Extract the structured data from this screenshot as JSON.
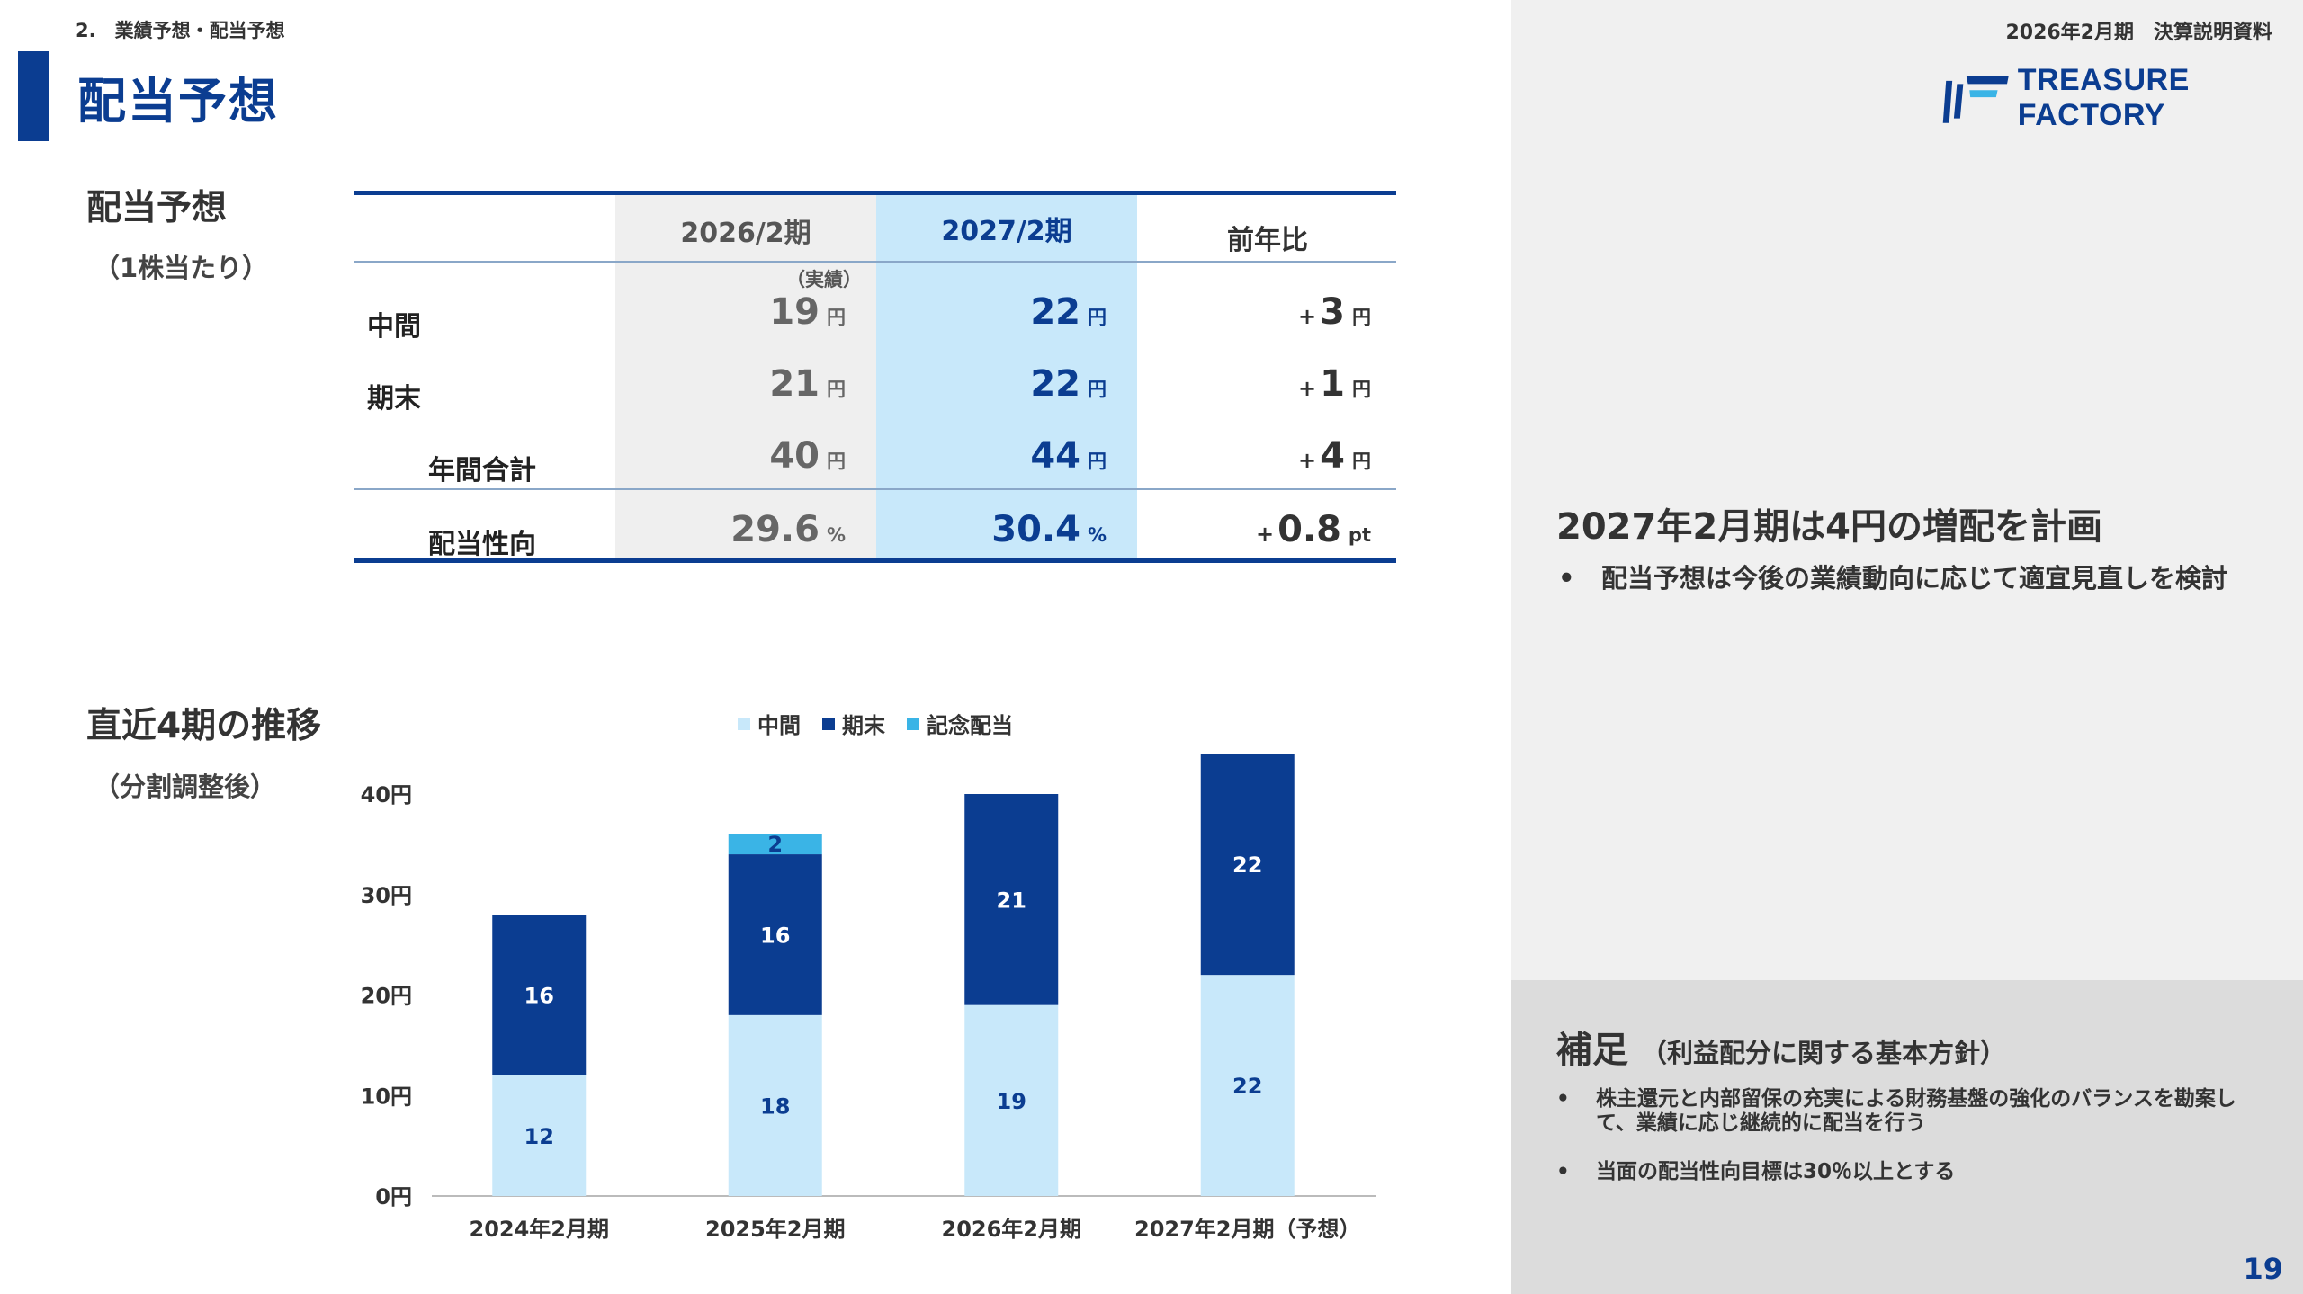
{
  "header": {
    "section_label": "2.　業績予想・配当予想",
    "page_title": "配当予想",
    "doc_label": "2026年2月期　決算説明資料",
    "logo_text": "TREASURE FACTORY",
    "logo_color": "#0b3d91"
  },
  "forecast_block": {
    "title": "配当予想",
    "subtitle": "（1株当たり）"
  },
  "table": {
    "headers": [
      "2026/2期",
      "2027/2期",
      "前年比"
    ],
    "actual_note": "（実績）",
    "rows": [
      {
        "label": "中間",
        "v2026": "19",
        "v2027": "22",
        "sign": "+",
        "diff": "3",
        "unit": "円",
        "diff_unit": "円"
      },
      {
        "label": "期末",
        "v2026": "21",
        "v2027": "22",
        "sign": "+",
        "diff": "1",
        "unit": "円",
        "diff_unit": "円"
      },
      {
        "label": "年間合計",
        "v2026": "40",
        "v2027": "44",
        "sign": "+",
        "diff": "4",
        "unit": "円",
        "diff_unit": "円"
      },
      {
        "label": "配当性向",
        "v2026": "29.6",
        "v2027": "30.4",
        "sign": "+",
        "diff": "0.8",
        "unit": "%",
        "diff_unit": "pt"
      }
    ]
  },
  "trend_block": {
    "title": "直近4期の推移",
    "subtitle": "（分割調整後）"
  },
  "chart_data": {
    "type": "bar",
    "stacked": true,
    "categories": [
      "2024年2月期",
      "2025年2月期",
      "2026年2月期",
      "2027年2月期（予想）"
    ],
    "series": [
      {
        "name": "中間",
        "color": "#c8e8fa",
        "label_color": "#0b3d91",
        "values": [
          12,
          18,
          19,
          22
        ]
      },
      {
        "name": "期末",
        "color": "#0b3d91",
        "label_color": "#ffffff",
        "values": [
          16,
          16,
          21,
          22
        ]
      },
      {
        "name": "記念配当",
        "color": "#3ab4e6",
        "label_color": "#0b3d91",
        "values": [
          0,
          2,
          0,
          0
        ]
      }
    ],
    "ylim": [
      0,
      45
    ],
    "y_ticks": [
      "0円",
      "10円",
      "20円",
      "30円",
      "40円"
    ],
    "y_tick_values": [
      0,
      10,
      20,
      30,
      40
    ],
    "legend_position": "top",
    "grid": false
  },
  "right_panel": {
    "heading": "2027年2月期は4円の増配を計画",
    "bullet_mark": "•",
    "bullet": "配当予想は今後の業績動向に応じて適宜見直しを検討"
  },
  "supplement": {
    "heading": "補足",
    "heading_sub": "（利益配分に関する基本方針）",
    "bullets": [
      "株主還元と内部留保の充実による財務基盤の強化のバランスを勘案して、業績に応じ継続的に配当を行う",
      "当面の配当性向目標は30％以上とする"
    ]
  },
  "page_number": "19"
}
